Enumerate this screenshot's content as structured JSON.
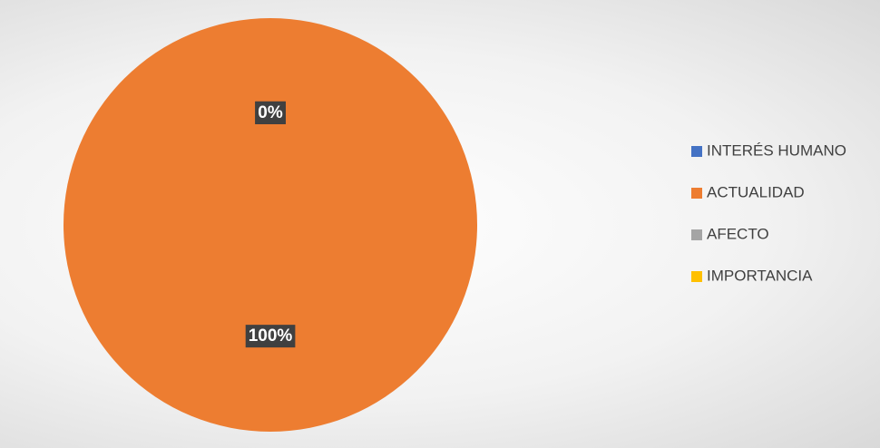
{
  "chart_data": {
    "type": "pie",
    "categories": [
      "INTERÉS HUMANO",
      "ACTUALIDAD",
      "AFECTO",
      "IMPORTANCIA"
    ],
    "values": [
      0,
      100,
      0,
      0
    ],
    "value_labels": [
      "0%",
      "100%",
      "0%",
      "0%"
    ],
    "colors": [
      "#4472c4",
      "#ed7d31",
      "#a5a5a5",
      "#ffc000"
    ],
    "legend": "right"
  }
}
